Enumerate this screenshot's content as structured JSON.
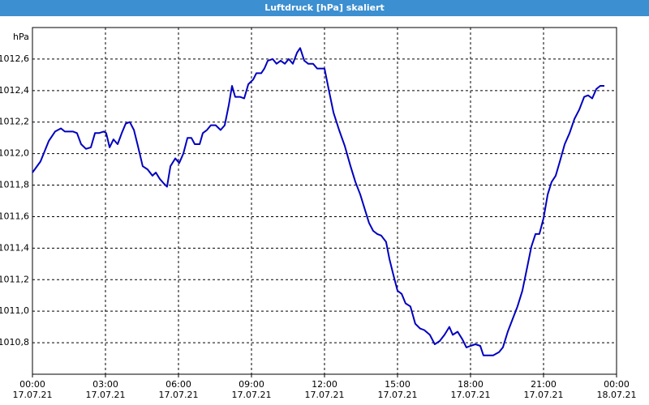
{
  "chart_data": {
    "type": "line",
    "title": "Luftdruck [hPa] skaliert",
    "y_label": "hPa",
    "x": [
      0,
      0.33,
      0.67,
      0.93,
      1.17,
      1.33,
      1.67,
      1.83,
      2.0,
      2.2,
      2.4,
      2.57,
      2.73,
      2.93,
      3.03,
      3.17,
      3.33,
      3.5,
      3.67,
      3.83,
      4.0,
      4.17,
      4.33,
      4.53,
      4.73,
      4.93,
      5.07,
      5.23,
      5.4,
      5.53,
      5.67,
      5.87,
      6.03,
      6.2,
      6.37,
      6.53,
      6.67,
      6.87,
      7.0,
      7.17,
      7.33,
      7.53,
      7.73,
      7.9,
      8.07,
      8.2,
      8.33,
      8.53,
      8.7,
      8.87,
      9.07,
      9.2,
      9.4,
      9.53,
      9.67,
      9.87,
      10.03,
      10.2,
      10.37,
      10.53,
      10.7,
      10.87,
      11.0,
      11.17,
      11.33,
      11.53,
      11.7,
      11.87,
      12.0,
      12.17,
      12.37,
      12.6,
      12.83,
      13.07,
      13.27,
      13.47,
      13.67,
      13.83,
      14.0,
      14.17,
      14.33,
      14.53,
      14.67,
      14.83,
      15.0,
      15.17,
      15.33,
      15.53,
      15.73,
      15.93,
      16.1,
      16.33,
      16.53,
      16.73,
      16.93,
      17.13,
      17.27,
      17.47,
      17.67,
      17.83,
      18.0,
      18.2,
      18.4,
      18.53,
      18.93,
      19.17,
      19.33,
      19.53,
      19.73,
      19.93,
      20.13,
      20.33,
      20.5,
      20.67,
      20.83,
      21.0,
      21.17,
      21.33,
      21.5,
      21.67,
      21.87,
      22.07,
      22.27,
      22.47,
      22.67,
      22.83,
      23.0,
      23.17,
      23.33,
      23.5
    ],
    "series": [
      {
        "name": "Luftdruck",
        "color": "#0000c0",
        "values": [
          1011.88,
          1011.95,
          1012.08,
          1012.14,
          1012.16,
          1012.14,
          1012.14,
          1012.13,
          1012.06,
          1012.03,
          1012.04,
          1012.13,
          1012.13,
          1012.14,
          1012.13,
          1012.04,
          1012.09,
          1012.06,
          1012.13,
          1012.19,
          1012.2,
          1012.15,
          1012.05,
          1011.92,
          1011.9,
          1011.86,
          1011.88,
          1011.84,
          1011.81,
          1011.79,
          1011.92,
          1011.97,
          1011.94,
          1012.0,
          1012.1,
          1012.1,
          1012.06,
          1012.06,
          1012.13,
          1012.15,
          1012.18,
          1012.18,
          1012.15,
          1012.18,
          1012.31,
          1012.43,
          1012.36,
          1012.36,
          1012.35,
          1012.44,
          1012.47,
          1012.51,
          1012.51,
          1012.54,
          1012.59,
          1012.6,
          1012.57,
          1012.59,
          1012.57,
          1012.6,
          1012.57,
          1012.64,
          1012.67,
          1012.59,
          1012.57,
          1012.57,
          1012.54,
          1012.54,
          1012.54,
          1012.41,
          1012.26,
          1012.15,
          1012.05,
          1011.92,
          1011.82,
          1011.74,
          1011.64,
          1011.56,
          1011.51,
          1011.49,
          1011.48,
          1011.44,
          1011.33,
          1011.23,
          1011.13,
          1011.11,
          1011.05,
          1011.03,
          1010.92,
          1010.89,
          1010.88,
          1010.85,
          1010.79,
          1010.81,
          1010.85,
          1010.9,
          1010.85,
          1010.87,
          1010.82,
          1010.77,
          1010.78,
          1010.79,
          1010.78,
          1010.72,
          1010.72,
          1010.74,
          1010.77,
          1010.87,
          1010.95,
          1011.03,
          1011.13,
          1011.28,
          1011.41,
          1011.49,
          1011.49,
          1011.59,
          1011.74,
          1011.82,
          1011.86,
          1011.95,
          1012.06,
          1012.13,
          1012.22,
          1012.28,
          1012.36,
          1012.37,
          1012.35,
          1012.41,
          1012.43,
          1012.43
        ]
      }
    ],
    "xlim": [
      0,
      24
    ],
    "xticks": [
      {
        "value": 0,
        "label": "00:00\n17.07.21"
      },
      {
        "value": 3,
        "label": "03:00\n17.07.21"
      },
      {
        "value": 6,
        "label": "06:00\n17.07.21"
      },
      {
        "value": 9,
        "label": "09:00\n17.07.21"
      },
      {
        "value": 12,
        "label": "12:00\n17.07.21"
      },
      {
        "value": 15,
        "label": "15:00\n17.07.21"
      },
      {
        "value": 18,
        "label": "18:00\n17.07.21"
      },
      {
        "value": 21,
        "label": "21:00\n17.07.21"
      },
      {
        "value": 24,
        "label": "00:00\n18.07.21"
      }
    ],
    "ylim": [
      1010.6,
      1012.8
    ],
    "yticks": [
      {
        "value": 1010.8,
        "label": "1010,8"
      },
      {
        "value": 1011.0,
        "label": "1011,0"
      },
      {
        "value": 1011.2,
        "label": "1011,2"
      },
      {
        "value": 1011.4,
        "label": "1011,4"
      },
      {
        "value": 1011.6,
        "label": "1011,6"
      },
      {
        "value": 1011.8,
        "label": "1011,8"
      },
      {
        "value": 1012.0,
        "label": "1012,0"
      },
      {
        "value": 1012.2,
        "label": "1012,2"
      },
      {
        "value": 1012.4,
        "label": "1012,4"
      },
      {
        "value": 1012.6,
        "label": "1012,6"
      }
    ],
    "grid": true
  }
}
